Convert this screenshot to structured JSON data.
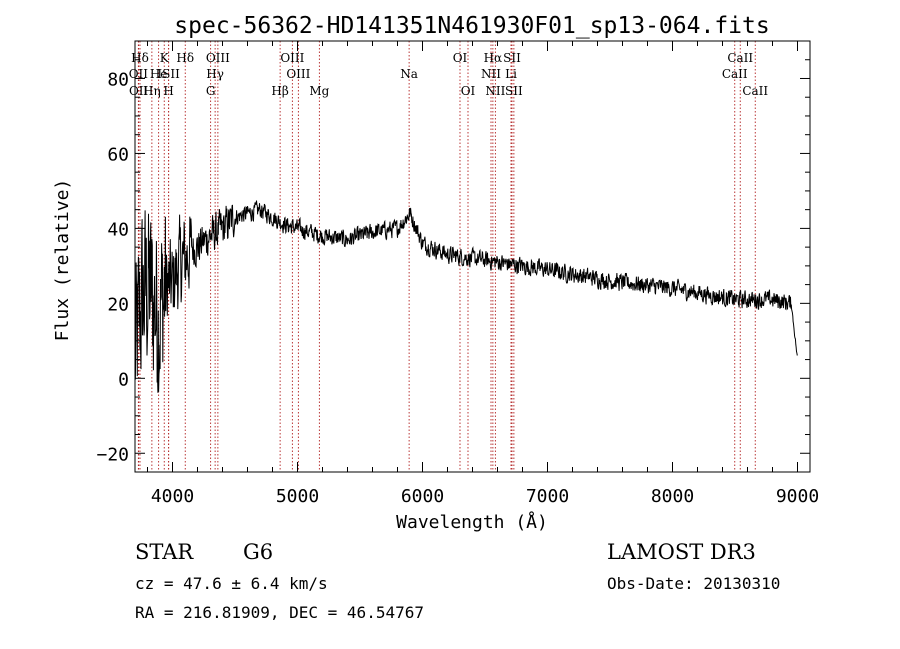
{
  "chart_data": {
    "type": "line",
    "title": "spec-56362-HD141351N461930F01_sp13-064.fits",
    "xlabel": "Wavelength (Å)",
    "ylabel": "Flux (relative)",
    "xlim": [
      3700,
      9100
    ],
    "ylim": [
      -25,
      90
    ],
    "xticks": [
      4000,
      5000,
      6000,
      7000,
      8000,
      9000
    ],
    "yticks": [
      -20,
      0,
      20,
      40,
      60,
      80
    ],
    "spectrum_envelope": {
      "x": [
        3700,
        3750,
        3800,
        3850,
        3900,
        3950,
        4000,
        4050,
        4100,
        4150,
        4200,
        4300,
        4400,
        4500,
        4600,
        4700,
        4800,
        4900,
        5000,
        5200,
        5400,
        5600,
        5800,
        5900,
        6000,
        6200,
        6400,
        6600,
        6800,
        7000,
        7500,
        8000,
        8500,
        8800,
        8950,
        9000
      ],
      "y": [
        5,
        20,
        25,
        20,
        18,
        25,
        25,
        30,
        32,
        35,
        35,
        38,
        40,
        43,
        44,
        45,
        43,
        41,
        40,
        38,
        37,
        39,
        40,
        44,
        36,
        33,
        32,
        31,
        30,
        29,
        26,
        24,
        21,
        21,
        20,
        5
      ]
    },
    "lines": [
      {
        "name": "Hδ",
        "x": 3740,
        "row": 1
      },
      {
        "name": "OII",
        "x": 3727,
        "row": 2
      },
      {
        "name": "OII",
        "x": 3729,
        "row": 3
      },
      {
        "name": "K",
        "x": 3934,
        "row": 1
      },
      {
        "name": "He",
        "x": 3889,
        "row": 2
      },
      {
        "name": "Hη",
        "x": 3835,
        "row": 3
      },
      {
        "name": "Hδ",
        "x": 4102,
        "row": 1
      },
      {
        "name": "ISII",
        "x": 3969,
        "row": 2
      },
      {
        "name": "H",
        "x": 3969,
        "row": 3
      },
      {
        "name": "OIII",
        "x": 4363,
        "row": 1
      },
      {
        "name": "Hγ",
        "x": 4341,
        "row": 2
      },
      {
        "name": "G",
        "x": 4305,
        "row": 3
      },
      {
        "name": "OIII",
        "x": 4959,
        "row": 1
      },
      {
        "name": "OIII",
        "x": 5007,
        "row": 2
      },
      {
        "name": "Hβ",
        "x": 4861,
        "row": 3
      },
      {
        "name": "Mg",
        "x": 5175,
        "row": 3
      },
      {
        "name": "Na",
        "x": 5893,
        "row": 2
      },
      {
        "name": "OI",
        "x": 6300,
        "row": 1
      },
      {
        "name": "OI",
        "x": 6364,
        "row": 3
      },
      {
        "name": "Hα",
        "x": 6563,
        "row": 1
      },
      {
        "name": "SII",
        "x": 6716,
        "row": 1
      },
      {
        "name": "NII",
        "x": 6548,
        "row": 2
      },
      {
        "name": "Li",
        "x": 6708,
        "row": 2
      },
      {
        "name": "NII",
        "x": 6583,
        "row": 3
      },
      {
        "name": "SII",
        "x": 6731,
        "row": 3
      },
      {
        "name": "CaII",
        "x": 8542,
        "row": 1
      },
      {
        "name": "CaII",
        "x": 8498,
        "row": 2
      },
      {
        "name": "CaII",
        "x": 8662,
        "row": 3
      }
    ]
  },
  "info": {
    "class": "STAR",
    "subclass": "G6",
    "survey": "LAMOST DR3",
    "cz": "cz = 47.6 ± 6.4 km/s",
    "obs_date": "Obs-Date: 20130310",
    "coords": "RA = 216.81909, DEC =  46.54767"
  }
}
